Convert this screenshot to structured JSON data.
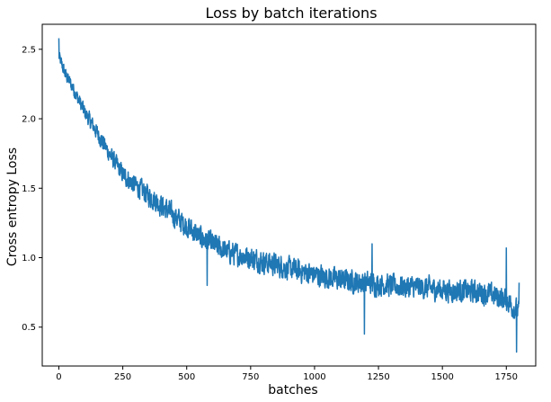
{
  "chart_data": {
    "type": "line",
    "title": "Loss by batch iterations",
    "xlabel": "batches",
    "ylabel": "Cross entropy Loss",
    "xlim": [
      -65,
      1865
    ],
    "ylim": [
      0.22,
      2.68
    ],
    "xticks": [
      0,
      250,
      500,
      750,
      1000,
      1250,
      1500,
      1750
    ],
    "yticks": [
      0.5,
      1.0,
      1.5,
      2.0,
      2.5
    ],
    "ytick_labels": [
      "0.5",
      "1.0",
      "1.5",
      "2.0",
      "2.5"
    ],
    "grid": false,
    "series": [
      {
        "color": "#1f77b4",
        "x": [
          0,
          25,
          50,
          100,
          150,
          200,
          250,
          300,
          350,
          400,
          450,
          500,
          550,
          600,
          650,
          700,
          750,
          800,
          850,
          900,
          950,
          1000,
          1050,
          1100,
          1150,
          1200,
          1250,
          1300,
          1350,
          1400,
          1450,
          1500,
          1550,
          1600,
          1650,
          1700,
          1750,
          1800
        ],
        "y": [
          2.45,
          2.32,
          2.24,
          2.05,
          1.9,
          1.74,
          1.6,
          1.52,
          1.45,
          1.38,
          1.3,
          1.23,
          1.15,
          1.1,
          1.05,
          1.02,
          1.0,
          0.97,
          0.95,
          0.92,
          0.9,
          0.88,
          0.86,
          0.84,
          0.83,
          0.82,
          0.81,
          0.8,
          0.79,
          0.79,
          0.78,
          0.77,
          0.76,
          0.76,
          0.75,
          0.73,
          0.7,
          0.6
        ],
        "noise_amplitude": 0.11,
        "outliers": [
          {
            "x": 0,
            "y": 2.58
          },
          {
            "x": 580,
            "y": 0.8
          },
          {
            "x": 1195,
            "y": 0.45
          },
          {
            "x": 1225,
            "y": 1.1
          },
          {
            "x": 1750,
            "y": 1.07
          },
          {
            "x": 1790,
            "y": 0.32
          },
          {
            "x": 1800,
            "y": 0.82
          }
        ]
      }
    ]
  }
}
